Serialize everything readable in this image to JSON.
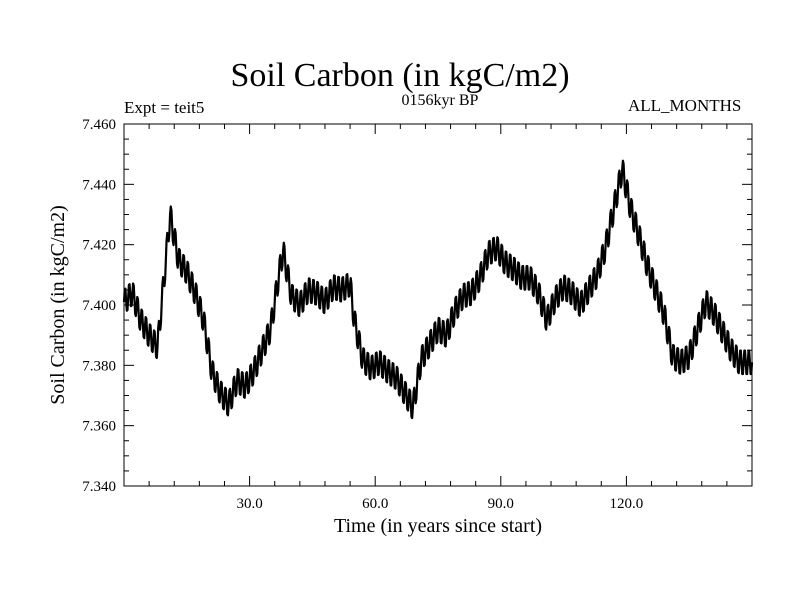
{
  "header": {
    "title": "Soil Carbon (in kgC/m2)",
    "subtitle": "0156kyr BP",
    "left_label": "Expt = teit5",
    "right_label": "ALL_MONTHS"
  },
  "colors": {
    "line": "#000000",
    "frame": "#000000",
    "background": "#ffffff"
  },
  "chart_data": {
    "type": "line",
    "title": "Soil Carbon (in kgC/m2)",
    "subtitle": "0156kyr BP",
    "xlabel": "Time (in years since start)",
    "ylabel": "Soil Carbon (in kgC/m2)",
    "xlim": [
      0,
      150
    ],
    "ylim": [
      7.34,
      7.46
    ],
    "x_ticks": [
      30,
      60,
      90,
      120
    ],
    "x_tick_labels": [
      "30.0",
      "60.0",
      "90.0",
      "120.0"
    ],
    "y_ticks": [
      7.34,
      7.36,
      7.38,
      7.4,
      7.42,
      7.44,
      7.46
    ],
    "y_tick_labels": [
      "7.340",
      "7.360",
      "7.380",
      "7.400",
      "7.420",
      "7.440",
      "7.460"
    ],
    "grid": false,
    "seasonal_amplitude": 0.0045,
    "series": [
      {
        "name": "Soil Carbon",
        "x": [
          0,
          2,
          4,
          6,
          8,
          10,
          11,
          13,
          15,
          17,
          19,
          21,
          23,
          25,
          27,
          29,
          31,
          33,
          35,
          37,
          38,
          40,
          42,
          44,
          46,
          48,
          50,
          52,
          54,
          55,
          57,
          59,
          61,
          63,
          65,
          67,
          69,
          71,
          73,
          75,
          77,
          79,
          81,
          83,
          85,
          87,
          89,
          91,
          93,
          95,
          97,
          99,
          101,
          103,
          105,
          107,
          109,
          111,
          113,
          115,
          117,
          119,
          121,
          123,
          125,
          127,
          129,
          131,
          133,
          135,
          137,
          139,
          141,
          143,
          145,
          147,
          150
        ],
        "y": [
          7.401,
          7.404,
          7.395,
          7.39,
          7.386,
          7.415,
          7.43,
          7.415,
          7.411,
          7.404,
          7.395,
          7.378,
          7.371,
          7.367,
          7.375,
          7.373,
          7.378,
          7.385,
          7.392,
          7.41,
          7.418,
          7.403,
          7.4,
          7.405,
          7.404,
          7.401,
          7.406,
          7.405,
          7.407,
          7.395,
          7.382,
          7.379,
          7.381,
          7.378,
          7.376,
          7.371,
          7.366,
          7.382,
          7.387,
          7.392,
          7.39,
          7.398,
          7.403,
          7.404,
          7.409,
          7.417,
          7.419,
          7.414,
          7.412,
          7.409,
          7.409,
          7.404,
          7.395,
          7.402,
          7.406,
          7.404,
          7.4,
          7.405,
          7.41,
          7.419,
          7.432,
          7.445,
          7.432,
          7.423,
          7.413,
          7.405,
          7.397,
          7.383,
          7.381,
          7.383,
          7.392,
          7.401,
          7.397,
          7.391,
          7.385,
          7.381,
          7.381
        ]
      }
    ]
  }
}
